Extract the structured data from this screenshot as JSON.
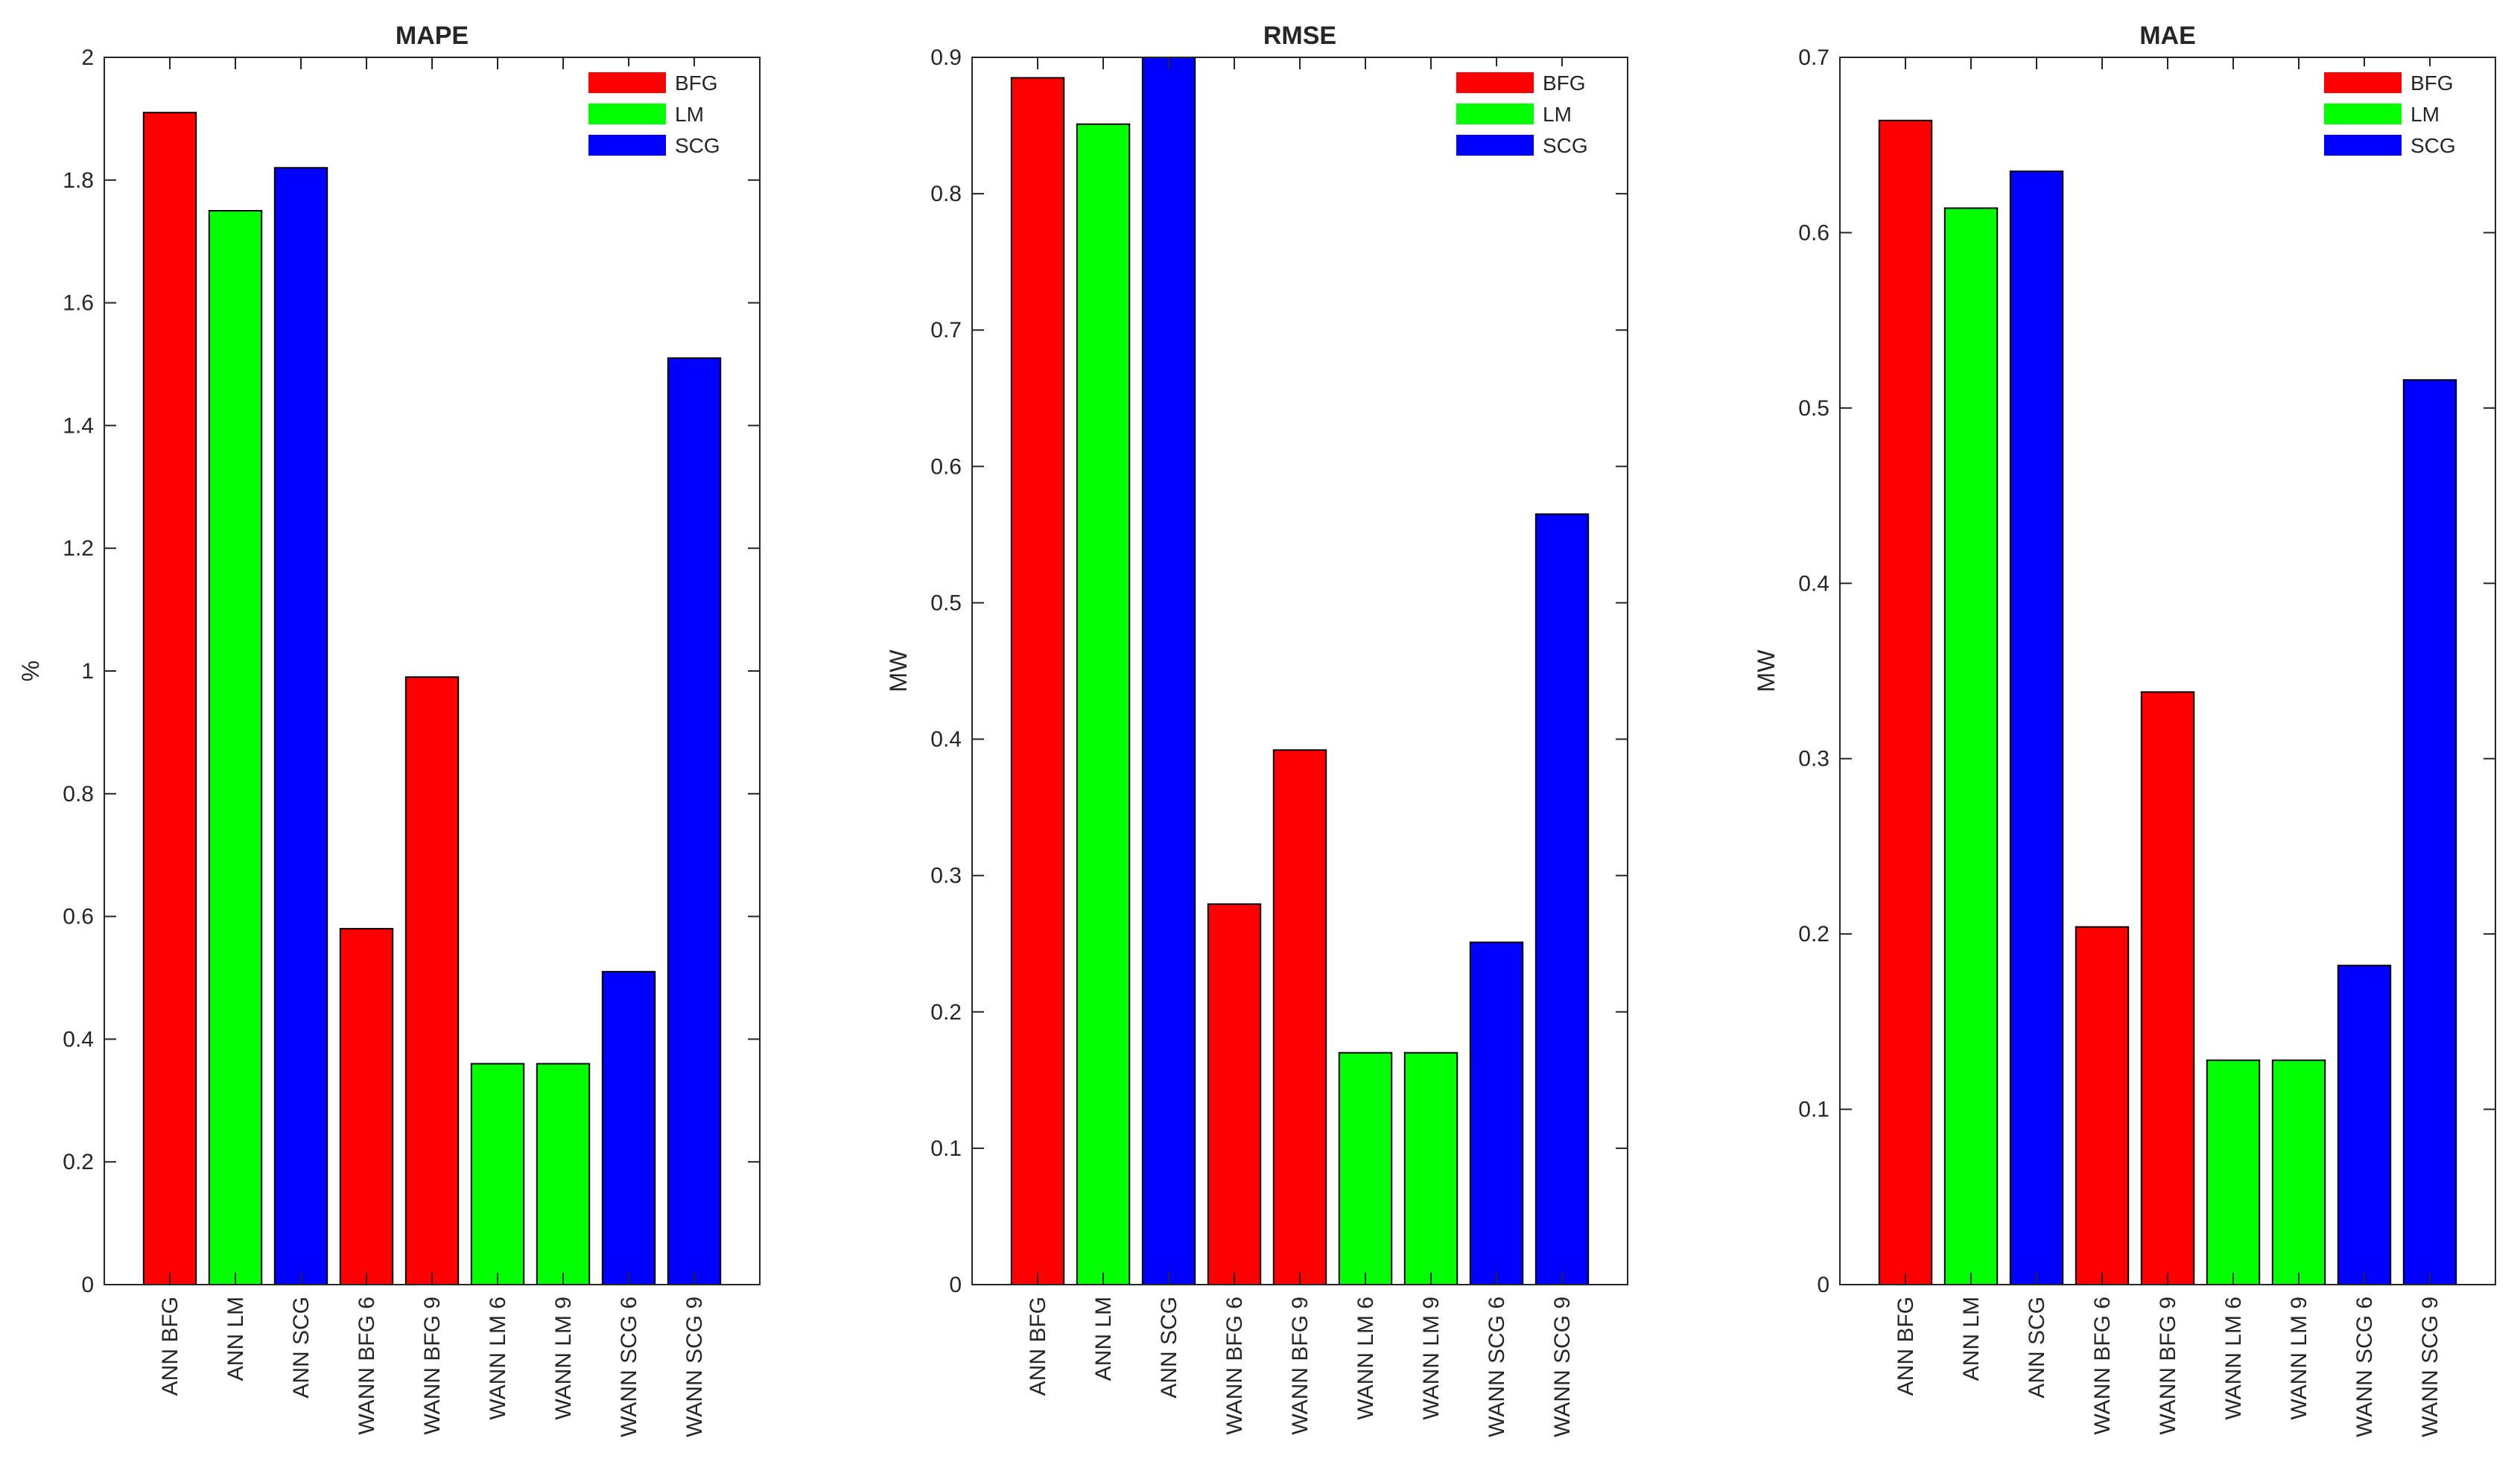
{
  "chart_data": [
    {
      "type": "bar",
      "title": "MAPE",
      "ylabel": "%",
      "xlabel": "",
      "ylim": [
        0,
        2
      ],
      "yticks": [
        0,
        0.2,
        0.4,
        0.6,
        0.8,
        1,
        1.2,
        1.4,
        1.6,
        1.8,
        2
      ],
      "categories": [
        "ANN BFG",
        "ANN LM",
        "ANN SCG",
        "WANN BFG 6",
        "WANN BFG 9",
        "WANN LM 6",
        "WANN LM 9",
        "WANN SCG 6",
        "WANN SCG 9"
      ],
      "values": [
        1.91,
        1.75,
        1.82,
        0.58,
        0.99,
        0.36,
        0.36,
        0.51,
        1.51
      ],
      "groups": [
        "BFG",
        "LM",
        "SCG",
        "BFG",
        "BFG",
        "LM",
        "LM",
        "SCG",
        "SCG"
      ],
      "legend": [
        "BFG",
        "LM",
        "SCG"
      ],
      "legend_position": "top-right"
    },
    {
      "type": "bar",
      "title": "RMSE",
      "ylabel": "MW",
      "xlabel": "",
      "ylim": [
        0,
        0.9
      ],
      "yticks": [
        0,
        0.1,
        0.2,
        0.3,
        0.4,
        0.5,
        0.6,
        0.7,
        0.8,
        0.9
      ],
      "categories": [
        "ANN BFG",
        "ANN LM",
        "ANN SCG",
        "WANN BFG 6",
        "WANN BFG 9",
        "WANN LM 6",
        "WANN LM 9",
        "WANN SCG 6",
        "WANN SCG 9"
      ],
      "values": [
        0.885,
        0.851,
        0.9,
        0.279,
        0.392,
        0.17,
        0.17,
        0.251,
        0.565
      ],
      "groups": [
        "BFG",
        "LM",
        "SCG",
        "BFG",
        "BFG",
        "LM",
        "LM",
        "SCG",
        "SCG"
      ],
      "legend": [
        "BFG",
        "LM",
        "SCG"
      ],
      "legend_position": "top-right"
    },
    {
      "type": "bar",
      "title": "MAE",
      "ylabel": "MW",
      "xlabel": "",
      "ylim": [
        0,
        0.7
      ],
      "yticks": [
        0,
        0.1,
        0.2,
        0.3,
        0.4,
        0.5,
        0.6,
        0.7
      ],
      "categories": [
        "ANN BFG",
        "ANN LM",
        "ANN SCG",
        "WANN BFG 6",
        "WANN BFG 9",
        "WANN LM 6",
        "WANN LM 9",
        "WANN SCG 6",
        "WANN SCG 9"
      ],
      "values": [
        0.664,
        0.614,
        0.635,
        0.204,
        0.338,
        0.128,
        0.128,
        0.182,
        0.516
      ],
      "groups": [
        "BFG",
        "LM",
        "SCG",
        "BFG",
        "BFG",
        "LM",
        "LM",
        "SCG",
        "SCG"
      ],
      "legend": [
        "BFG",
        "LM",
        "SCG"
      ],
      "legend_position": "top-right"
    }
  ],
  "colors": {
    "BFG": "#ff0000",
    "LM": "#00ff00",
    "SCG": "#0000ff"
  }
}
